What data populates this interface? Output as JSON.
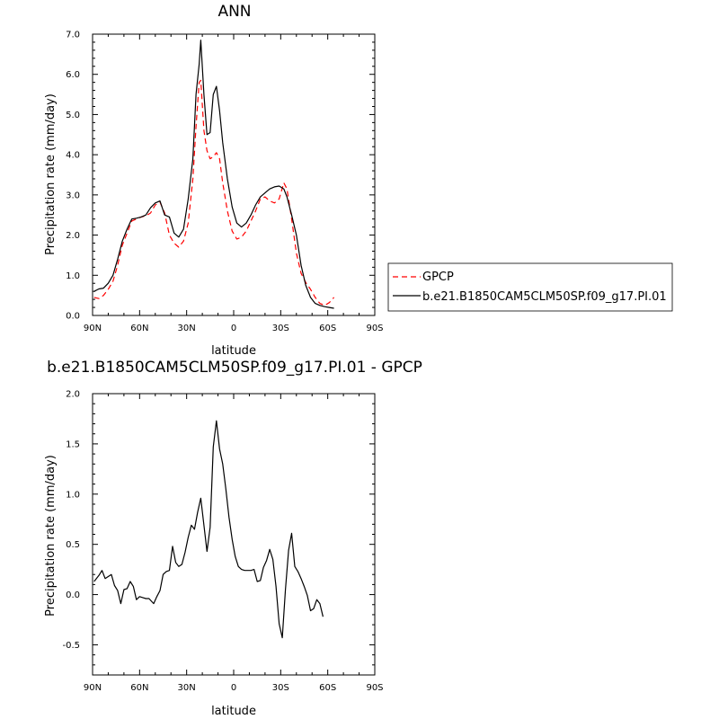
{
  "chart_data": [
    {
      "type": "line",
      "title": "ANN",
      "xlabel": "latitude",
      "ylabel": "Precipitation rate (mm/day)",
      "xlim": [
        90,
        -90
      ],
      "ylim": [
        0,
        7
      ],
      "xticks": [
        90,
        60,
        30,
        0,
        -30,
        -60,
        -90
      ],
      "xtick_labels": [
        "90N",
        "60N",
        "30N",
        "0",
        "30S",
        "60S",
        "90S"
      ],
      "yticks": [
        0,
        1,
        2,
        3,
        4,
        5,
        6,
        7
      ],
      "ytick_labels": [
        "0.0",
        "1.0",
        "2.0",
        "3.0",
        "4.0",
        "5.0",
        "6.0",
        "7.0"
      ],
      "grid": false,
      "legend_position": "outside-right",
      "series": [
        {
          "name": "GPCP",
          "color": "#ff0000",
          "dash": "dashed",
          "points": [
            [
              89,
              0.45
            ],
            [
              86,
              0.42
            ],
            [
              83,
              0.5
            ],
            [
              80,
              0.65
            ],
            [
              77,
              0.85
            ],
            [
              74,
              1.25
            ],
            [
              71,
              1.75
            ],
            [
              68,
              2.05
            ],
            [
              65,
              2.35
            ],
            [
              62,
              2.4
            ],
            [
              59,
              2.45
            ],
            [
              56,
              2.48
            ],
            [
              53,
              2.55
            ],
            [
              50,
              2.75
            ],
            [
              47,
              2.82
            ],
            [
              44,
              2.55
            ],
            [
              41,
              2.0
            ],
            [
              38,
              1.8
            ],
            [
              35,
              1.7
            ],
            [
              32,
              1.85
            ],
            [
              29,
              2.3
            ],
            [
              26,
              3.4
            ],
            [
              24,
              4.7
            ],
            [
              22,
              5.8
            ],
            [
              21,
              5.85
            ],
            [
              19,
              4.6
            ],
            [
              17,
              4.1
            ],
            [
              15,
              3.9
            ],
            [
              13,
              3.95
            ],
            [
              11,
              4.05
            ],
            [
              9,
              3.9
            ],
            [
              7,
              3.3
            ],
            [
              4,
              2.6
            ],
            [
              1,
              2.1
            ],
            [
              -2,
              1.9
            ],
            [
              -5,
              1.95
            ],
            [
              -8,
              2.1
            ],
            [
              -11,
              2.35
            ],
            [
              -14,
              2.6
            ],
            [
              -17,
              2.9
            ],
            [
              -20,
              2.95
            ],
            [
              -23,
              2.85
            ],
            [
              -26,
              2.8
            ],
            [
              -29,
              2.9
            ],
            [
              -32,
              3.3
            ],
            [
              -34,
              3.15
            ],
            [
              -37,
              2.4
            ],
            [
              -40,
              1.55
            ],
            [
              -43,
              1.05
            ],
            [
              -46,
              0.82
            ],
            [
              -49,
              0.65
            ],
            [
              -52,
              0.45
            ],
            [
              -55,
              0.3
            ],
            [
              -58,
              0.25
            ],
            [
              -61,
              0.32
            ],
            [
              -64,
              0.45
            ]
          ]
        },
        {
          "name": "b.e21.B1850CAM5CLM50SP.f09_g17.PI.01",
          "color": "#000000",
          "dash": "solid",
          "points": [
            [
              89,
              0.6
            ],
            [
              86,
              0.66
            ],
            [
              83,
              0.68
            ],
            [
              80,
              0.8
            ],
            [
              77,
              1.0
            ],
            [
              74,
              1.4
            ],
            [
              71,
              1.85
            ],
            [
              68,
              2.15
            ],
            [
              65,
              2.4
            ],
            [
              62,
              2.42
            ],
            [
              59,
              2.45
            ],
            [
              56,
              2.5
            ],
            [
              53,
              2.68
            ],
            [
              50,
              2.8
            ],
            [
              47,
              2.85
            ],
            [
              44,
              2.5
            ],
            [
              41,
              2.45
            ],
            [
              38,
              2.05
            ],
            [
              35,
              1.95
            ],
            [
              32,
              2.15
            ],
            [
              29,
              2.9
            ],
            [
              26,
              3.9
            ],
            [
              24,
              5.5
            ],
            [
              22,
              6.25
            ],
            [
              21,
              6.85
            ],
            [
              19,
              5.5
            ],
            [
              17,
              4.5
            ],
            [
              15,
              4.55
            ],
            [
              13,
              5.5
            ],
            [
              11,
              5.7
            ],
            [
              9,
              5.1
            ],
            [
              7,
              4.3
            ],
            [
              4,
              3.4
            ],
            [
              1,
              2.7
            ],
            [
              -2,
              2.3
            ],
            [
              -5,
              2.2
            ],
            [
              -8,
              2.3
            ],
            [
              -11,
              2.5
            ],
            [
              -14,
              2.75
            ],
            [
              -17,
              2.95
            ],
            [
              -20,
              3.05
            ],
            [
              -23,
              3.15
            ],
            [
              -26,
              3.2
            ],
            [
              -29,
              3.22
            ],
            [
              -32,
              3.15
            ],
            [
              -34,
              2.95
            ],
            [
              -37,
              2.5
            ],
            [
              -40,
              2.0
            ],
            [
              -43,
              1.25
            ],
            [
              -46,
              0.75
            ],
            [
              -49,
              0.45
            ],
            [
              -52,
              0.3
            ],
            [
              -55,
              0.25
            ],
            [
              -58,
              0.22
            ],
            [
              -61,
              0.2
            ],
            [
              -64,
              0.18
            ]
          ]
        }
      ]
    },
    {
      "type": "line",
      "title": "b.e21.B1850CAM5CLM50SP.f09_g17.PI.01 - GPCP",
      "xlabel": "latitude",
      "ylabel": "Precipitation rate (mm/day)",
      "xlim": [
        90,
        -90
      ],
      "ylim": [
        -0.8,
        2
      ],
      "xticks": [
        90,
        60,
        30,
        0,
        -30,
        -60,
        -90
      ],
      "xtick_labels": [
        "90N",
        "60N",
        "30N",
        "0",
        "30S",
        "60S",
        "90S"
      ],
      "yticks": [
        -0.5,
        0,
        0.5,
        1,
        1.5,
        2
      ],
      "ytick_labels": [
        "-0.5",
        "0.0",
        "0.5",
        "1.0",
        "1.5",
        "2.0"
      ],
      "grid": false,
      "series": [
        {
          "color": "#000000",
          "dash": "solid",
          "points": [
            [
              89,
              0.13
            ],
            [
              86,
              0.19
            ],
            [
              84,
              0.24
            ],
            [
              82,
              0.16
            ],
            [
              80,
              0.18
            ],
            [
              78,
              0.2
            ],
            [
              76,
              0.09
            ],
            [
              74,
              0.04
            ],
            [
              72,
              -0.09
            ],
            [
              70,
              0.05
            ],
            [
              68,
              0.06
            ],
            [
              66,
              0.13
            ],
            [
              64,
              0.08
            ],
            [
              62,
              -0.05
            ],
            [
              60,
              -0.02
            ],
            [
              58,
              -0.03
            ],
            [
              56,
              -0.04
            ],
            [
              54,
              -0.04
            ],
            [
              51,
              -0.09
            ],
            [
              49,
              -0.02
            ],
            [
              47,
              0.04
            ],
            [
              45,
              0.2
            ],
            [
              43,
              0.23
            ],
            [
              41,
              0.24
            ],
            [
              39,
              0.48
            ],
            [
              37,
              0.32
            ],
            [
              35,
              0.28
            ],
            [
              33,
              0.3
            ],
            [
              31,
              0.42
            ],
            [
              29,
              0.57
            ],
            [
              27,
              0.69
            ],
            [
              25,
              0.65
            ],
            [
              23,
              0.82
            ],
            [
              21,
              0.96
            ],
            [
              19,
              0.69
            ],
            [
              17,
              0.43
            ],
            [
              15,
              0.67
            ],
            [
              13,
              1.47
            ],
            [
              11,
              1.73
            ],
            [
              9,
              1.45
            ],
            [
              7,
              1.3
            ],
            [
              5,
              1.05
            ],
            [
              3,
              0.77
            ],
            [
              1,
              0.55
            ],
            [
              -1,
              0.38
            ],
            [
              -3,
              0.28
            ],
            [
              -5,
              0.25
            ],
            [
              -7,
              0.24
            ],
            [
              -9,
              0.24
            ],
            [
              -11,
              0.24
            ],
            [
              -13,
              0.25
            ],
            [
              -15,
              0.13
            ],
            [
              -17,
              0.14
            ],
            [
              -19,
              0.27
            ],
            [
              -21,
              0.34
            ],
            [
              -23,
              0.45
            ],
            [
              -25,
              0.35
            ],
            [
              -27,
              0.08
            ],
            [
              -29,
              -0.29
            ],
            [
              -31,
              -0.43
            ],
            [
              -33,
              0.05
            ],
            [
              -35,
              0.44
            ],
            [
              -37,
              0.61
            ],
            [
              -39,
              0.28
            ],
            [
              -41,
              0.23
            ],
            [
              -43,
              0.16
            ],
            [
              -45,
              0.08
            ],
            [
              -47,
              -0.01
            ],
            [
              -49,
              -0.16
            ],
            [
              -51,
              -0.14
            ],
            [
              -53,
              -0.05
            ],
            [
              -55,
              -0.09
            ],
            [
              -57,
              -0.22
            ]
          ]
        }
      ]
    }
  ]
}
